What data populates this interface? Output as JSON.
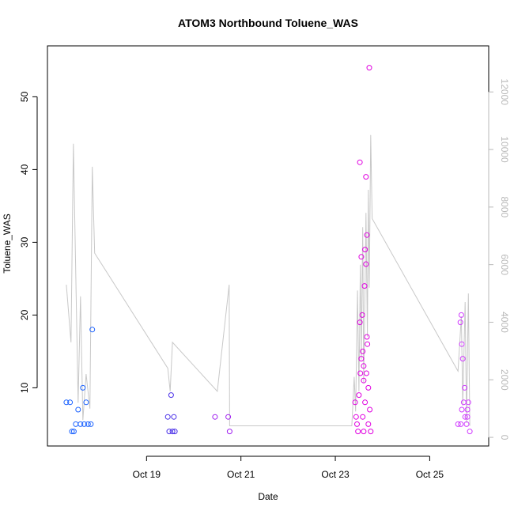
{
  "chart_data": {
    "type": "scatter",
    "title": "ATOM3 Northbound Toluene_WAS",
    "xlabel": "Date",
    "ylabel": "Toluene_WAS",
    "x_ticks": [
      "Oct 19",
      "Oct 21",
      "Oct 23",
      "Oct 25"
    ],
    "x_tick_days": [
      19,
      21,
      23,
      25
    ],
    "xlim_days": [
      16.9,
      26.25
    ],
    "ylim": [
      2,
      57
    ],
    "y_ticks": [
      10,
      20,
      30,
      40,
      50
    ],
    "y2lim": [
      -300,
      13600
    ],
    "y2_ticks": [
      0,
      2000,
      4000,
      6000,
      8000,
      10000,
      12000
    ],
    "grid": false,
    "line_color": "#c8c8c8",
    "secondary_series": [
      [
        17.3,
        5300
      ],
      [
        17.4,
        3300
      ],
      [
        17.45,
        10200
      ],
      [
        17.55,
        1200
      ],
      [
        17.6,
        4900
      ],
      [
        17.65,
        600
      ],
      [
        17.72,
        2200
      ],
      [
        17.8,
        1000
      ],
      [
        17.85,
        9400
      ],
      [
        17.9,
        6400
      ],
      [
        19.45,
        2400
      ],
      [
        19.5,
        1600
      ],
      [
        19.55,
        3300
      ],
      [
        20.5,
        1600
      ],
      [
        20.75,
        5300
      ],
      [
        20.76,
        400
      ],
      [
        23.35,
        400
      ],
      [
        23.4,
        2100
      ],
      [
        23.43,
        900
      ],
      [
        23.47,
        5100
      ],
      [
        23.5,
        1600
      ],
      [
        23.53,
        6000
      ],
      [
        23.55,
        2700
      ],
      [
        23.58,
        7300
      ],
      [
        23.6,
        1900
      ],
      [
        23.63,
        5100
      ],
      [
        23.65,
        7800
      ],
      [
        23.68,
        3500
      ],
      [
        23.7,
        8600
      ],
      [
        23.72,
        5200
      ],
      [
        23.75,
        10500
      ],
      [
        23.78,
        7600
      ],
      [
        25.6,
        2300
      ],
      [
        25.67,
        4200
      ],
      [
        25.7,
        1100
      ],
      [
        25.75,
        4700
      ],
      [
        25.78,
        500
      ],
      [
        25.82,
        5000
      ],
      [
        25.85,
        400
      ]
    ],
    "series": [
      {
        "color": "#1e64ff",
        "points": [
          [
            17.3,
            8
          ],
          [
            17.38,
            8
          ],
          [
            17.42,
            4
          ],
          [
            17.46,
            4
          ],
          [
            17.5,
            5
          ],
          [
            17.55,
            7
          ],
          [
            17.6,
            5
          ],
          [
            17.65,
            10
          ],
          [
            17.68,
            5
          ],
          [
            17.72,
            8
          ],
          [
            17.76,
            5
          ],
          [
            17.82,
            5
          ],
          [
            17.85,
            18
          ]
        ]
      },
      {
        "color": "#4a30e8",
        "points": [
          [
            19.45,
            6
          ],
          [
            19.48,
            4
          ],
          [
            19.52,
            9
          ],
          [
            19.55,
            4
          ],
          [
            19.58,
            6
          ],
          [
            19.6,
            4
          ]
        ]
      },
      {
        "color": "#a020f0",
        "points": [
          [
            20.45,
            6
          ],
          [
            20.73,
            6
          ],
          [
            20.76,
            4
          ]
        ]
      },
      {
        "color": "#e000e0",
        "points": [
          [
            23.42,
            8
          ],
          [
            23.44,
            6
          ],
          [
            23.46,
            5
          ],
          [
            23.48,
            4
          ],
          [
            23.5,
            9
          ],
          [
            23.52,
            41
          ],
          [
            23.53,
            12
          ],
          [
            23.55,
            28
          ],
          [
            23.57,
            20
          ],
          [
            23.58,
            15
          ],
          [
            23.6,
            11
          ],
          [
            23.62,
            24
          ],
          [
            23.63,
            8
          ],
          [
            23.65,
            39
          ],
          [
            23.67,
            31
          ],
          [
            23.68,
            16
          ],
          [
            23.7,
            10
          ],
          [
            23.72,
            54
          ],
          [
            23.73,
            7
          ],
          [
            23.75,
            4
          ],
          [
            23.52,
            19
          ],
          [
            23.55,
            14
          ],
          [
            23.6,
            13
          ],
          [
            23.63,
            29
          ],
          [
            23.65,
            27
          ],
          [
            23.67,
            17
          ],
          [
            23.7,
            5
          ],
          [
            23.58,
            6
          ],
          [
            23.6,
            4
          ],
          [
            23.66,
            12
          ]
        ]
      },
      {
        "color": "#d03cff",
        "points": [
          [
            25.6,
            5
          ],
          [
            25.65,
            19
          ],
          [
            25.67,
            20
          ],
          [
            25.68,
            16
          ],
          [
            25.7,
            14
          ],
          [
            25.72,
            8
          ],
          [
            25.74,
            10
          ],
          [
            25.75,
            6
          ],
          [
            25.78,
            5
          ],
          [
            25.8,
            6
          ],
          [
            25.82,
            8
          ],
          [
            25.85,
            4
          ],
          [
            25.68,
            7
          ],
          [
            25.66,
            5
          ],
          [
            25.8,
            7
          ]
        ]
      }
    ]
  }
}
